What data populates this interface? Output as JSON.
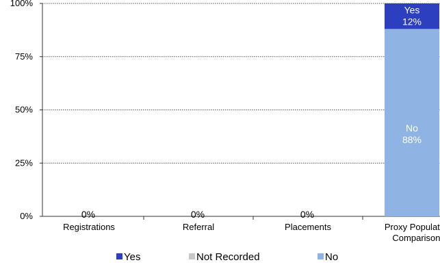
{
  "chart_data": {
    "type": "bar",
    "stacked": true,
    "percent": true,
    "categories": [
      [
        "Registrations"
      ],
      [
        "Referral"
      ],
      [
        "Placements"
      ],
      [
        "Proxy Population",
        "Comparison*"
      ]
    ],
    "series": [
      {
        "name": "Yes",
        "color": "#2b3fbf",
        "values": [
          0,
          0,
          0,
          12
        ]
      },
      {
        "name": "Not Recorded",
        "color": "#c8c8c8",
        "values": [
          0,
          0,
          0,
          0
        ]
      },
      {
        "name": "No",
        "color": "#8fb4e3",
        "values": [
          0,
          0,
          0,
          88
        ]
      }
    ],
    "segment_labels": [
      {
        "category": 0,
        "series": "",
        "text": [
          "0%"
        ]
      },
      {
        "category": 1,
        "series": "",
        "text": [
          "0%"
        ]
      },
      {
        "category": 2,
        "series": "",
        "text": [
          "0%"
        ]
      },
      {
        "category": 3,
        "series": "Yes",
        "text": [
          "Yes",
          "12%"
        ]
      },
      {
        "category": 3,
        "series": "No",
        "text": [
          "No",
          "88%"
        ]
      }
    ],
    "yticks": [
      "0%",
      "25%",
      "50%",
      "75%",
      "100%"
    ],
    "ylim": [
      0,
      100
    ],
    "grid": true,
    "legend": "bottom"
  }
}
